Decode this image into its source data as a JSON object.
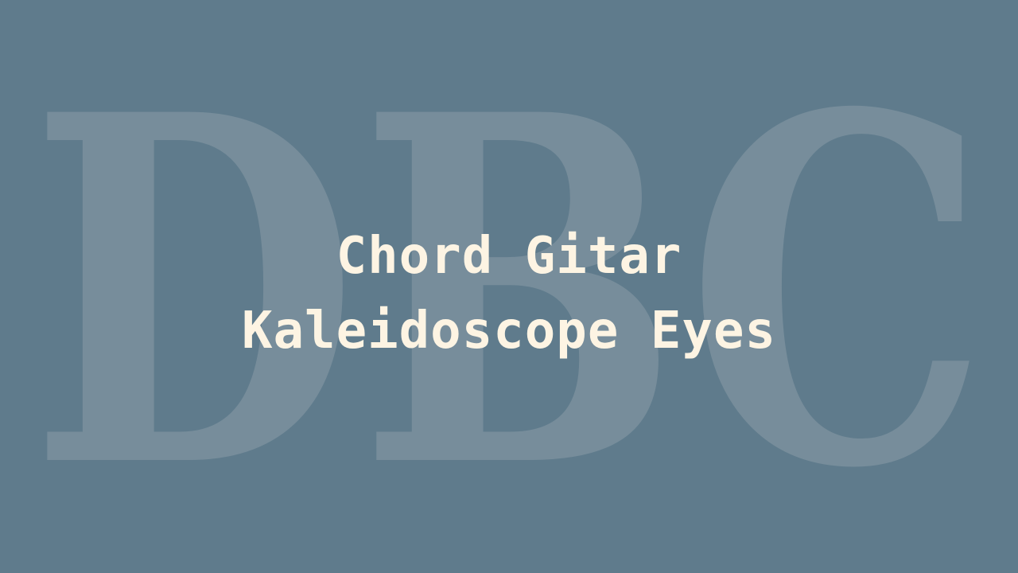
{
  "watermark": {
    "text": "DBC",
    "color": "#8a9ca8"
  },
  "title": {
    "line1": "Chord Gitar",
    "line2": "Kaleidoscope Eyes",
    "color": "#fdf4e3"
  },
  "background_color": "#5f7b8c"
}
